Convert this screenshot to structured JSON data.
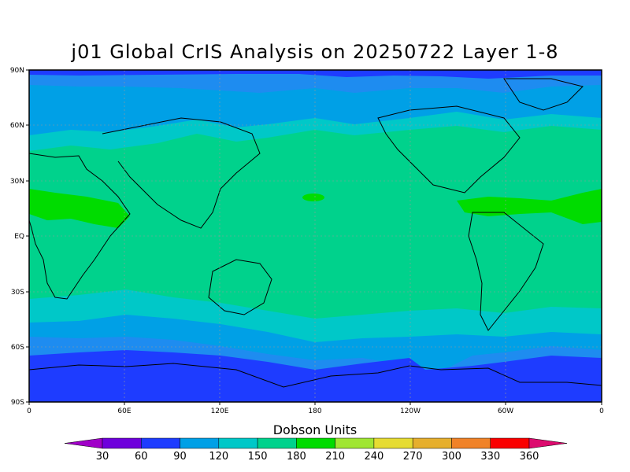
{
  "title": "j01 Global CrIS Analysis on 20250722 Layer 1-8",
  "colorbar": {
    "title": "Dobson Units",
    "labels": [
      "30",
      "60",
      "90",
      "120",
      "150",
      "180",
      "210",
      "240",
      "270",
      "300",
      "330",
      "360"
    ],
    "colors": [
      "#a000c8",
      "#6e00dc",
      "#1e3cff",
      "#00a0e6",
      "#00c8c8",
      "#00d28c",
      "#00dc00",
      "#a0e632",
      "#e6dc32",
      "#e6af2d",
      "#f08228",
      "#fa0000",
      "#dc0a6e"
    ]
  },
  "map": {
    "type": "filled-contour-map",
    "projection": "cylindrical-equidistant",
    "lat_labels": [
      "90N",
      "60N",
      "30N",
      "EQ",
      "30S",
      "60S",
      "90S"
    ],
    "lon_labels": [
      "0",
      "60E",
      "120E",
      "180",
      "120W",
      "60W",
      "0"
    ],
    "grid": true,
    "coastlines": true
  }
}
